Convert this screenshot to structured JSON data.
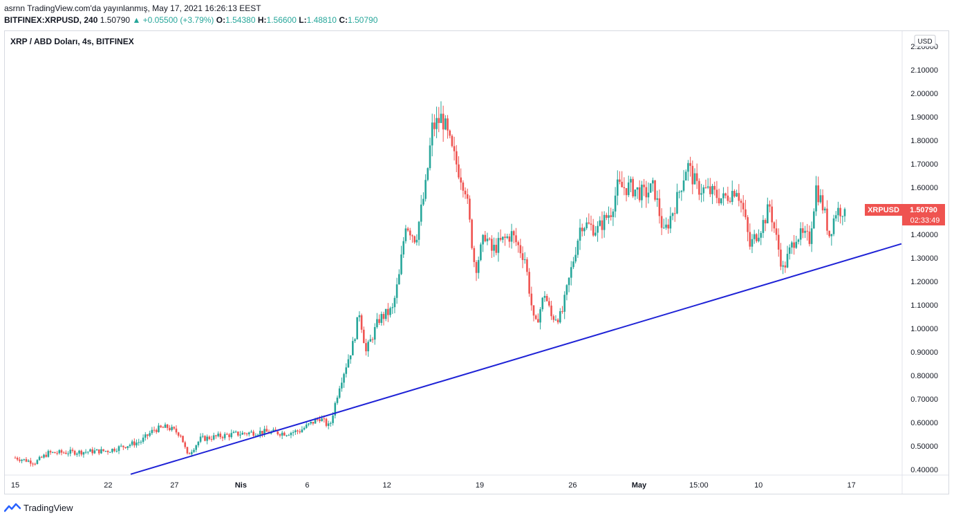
{
  "header": {
    "publisher_line": "asrnn TradingView.com'da yayınlanmış, May 17, 2021 16:26:13 EEST",
    "symbol": "BITFINEX:XRPUSD, 240",
    "last": "1.50790",
    "change": "▲ +0.05500 (+3.79%)",
    "o_label": "O:",
    "o_value": "1.54380",
    "h_label": "H:",
    "h_value": "1.56600",
    "l_label": "L:",
    "l_value": "1.48810",
    "c_label": "C:",
    "c_value": "1.50790"
  },
  "legend": "XRP / ABD Doları, 4s, BITFINEX",
  "currency_badge": "USD",
  "price_tag": {
    "symbol": "XRPUSD",
    "price": "1.50790",
    "countdown": "02:33:49"
  },
  "footer": {
    "brand": "TradingView"
  },
  "colors": {
    "up": "#26a69a",
    "down": "#ef5350",
    "trendline": "#1e22d6",
    "tag": "#ef5350"
  },
  "chart_data": {
    "type": "candlestick",
    "title": "XRP / ABD Doları, 4s, BITFINEX",
    "y_ticks": [
      "2.20000",
      "2.10000",
      "2.00000",
      "1.90000",
      "1.80000",
      "1.70000",
      "1.60000",
      "1.50000",
      "1.40000",
      "1.30000",
      "1.20000",
      "1.10000",
      "1.00000",
      "0.90000",
      "0.80000",
      "0.70000",
      "0.60000",
      "0.50000",
      "0.40000"
    ],
    "x_ticks": [
      "15",
      "22",
      "27",
      "Nis",
      "6",
      "12",
      "19",
      "26",
      "May",
      "15:00",
      "10",
      "17"
    ],
    "ylim": [
      0.37,
      2.21
    ],
    "last_price": 1.5079,
    "price_path": [
      [
        0,
        0.45
      ],
      [
        3,
        0.43
      ],
      [
        5,
        0.47
      ],
      [
        10,
        0.475
      ],
      [
        14,
        0.48
      ],
      [
        19,
        0.52
      ],
      [
        21,
        0.57
      ],
      [
        23,
        0.58
      ],
      [
        25,
        0.55
      ],
      [
        26,
        0.46
      ],
      [
        28,
        0.53
      ],
      [
        33,
        0.55
      ],
      [
        37,
        0.56
      ],
      [
        41,
        0.555
      ],
      [
        43,
        0.565
      ],
      [
        46,
        0.62
      ],
      [
        47.5,
        0.58
      ],
      [
        49,
        0.76
      ],
      [
        51,
        0.93
      ],
      [
        52,
        1.07
      ],
      [
        53,
        0.9
      ],
      [
        55,
        1.04
      ],
      [
        57,
        1.08
      ],
      [
        58,
        1.22
      ],
      [
        59,
        1.45
      ],
      [
        60.5,
        1.38
      ],
      [
        62,
        1.6
      ],
      [
        63,
        1.85
      ],
      [
        64.5,
        1.9
      ],
      [
        66,
        1.75
      ],
      [
        68,
        1.6
      ],
      [
        69.5,
        1.25
      ],
      [
        71,
        1.4
      ],
      [
        72,
        1.33
      ],
      [
        73.5,
        1.37
      ],
      [
        75,
        1.4
      ],
      [
        77,
        1.3
      ],
      [
        78.5,
        1.0
      ],
      [
        80,
        1.15
      ],
      [
        81,
        1.05
      ],
      [
        82.5,
        1.05
      ],
      [
        84,
        1.25
      ],
      [
        85.5,
        1.45
      ],
      [
        88,
        1.42
      ],
      [
        90,
        1.5
      ],
      [
        91,
        1.6
      ],
      [
        93,
        1.6
      ],
      [
        95,
        1.57
      ],
      [
        96.5,
        1.6
      ],
      [
        98,
        1.4
      ],
      [
        100,
        1.55
      ],
      [
        101.5,
        1.7
      ],
      [
        103,
        1.6
      ],
      [
        105,
        1.58
      ],
      [
        107,
        1.55
      ],
      [
        109,
        1.6
      ],
      [
        110,
        1.5
      ],
      [
        111,
        1.35
      ],
      [
        113,
        1.45
      ],
      [
        114,
        1.52
      ],
      [
        115,
        1.38
      ],
      [
        116,
        1.25
      ],
      [
        118,
        1.4
      ],
      [
        120,
        1.38
      ],
      [
        121,
        1.6
      ],
      [
        122,
        1.52
      ],
      [
        123,
        1.4
      ],
      [
        124,
        1.5
      ],
      [
        125,
        1.508
      ]
    ],
    "trendline": {
      "start": {
        "date": "Mar 24",
        "price": 0.38
      },
      "end": {
        "date": "May 21",
        "price": 1.36
      }
    }
  }
}
